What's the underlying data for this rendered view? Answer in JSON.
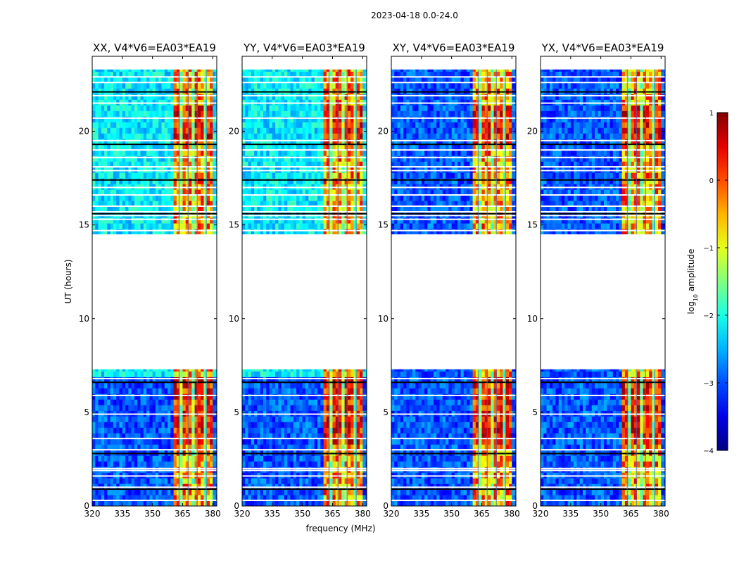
{
  "chart_data": {
    "type": "heatmap",
    "title": "2023-04-18 0.0-24.0",
    "xlabel": "frequency (MHz)",
    "ylabel": "UT (hours)",
    "xlim": [
      320,
      382
    ],
    "ylim": [
      0,
      24
    ],
    "x_ticks": [
      "320",
      "335",
      "350",
      "365",
      "380"
    ],
    "x_tick_values": [
      320,
      335,
      350,
      365,
      380
    ],
    "y_ticks": [
      "0",
      "5",
      "10",
      "15",
      "20"
    ],
    "y_tick_values": [
      0,
      5,
      10,
      15,
      20
    ],
    "data_gap_hours": [
      7.3,
      14.5
    ],
    "data_end_hour": 23.3,
    "strong_band_mhz": [
      360,
      380
    ],
    "panels": [
      {
        "title": "XX, V4*V6=EA03*EA19"
      },
      {
        "title": "YY, V4*V6=EA03*EA19"
      },
      {
        "title": "XY, V4*V6=EA03*EA19"
      },
      {
        "title": "YX, V4*V6=EA03*EA19"
      }
    ],
    "colorbar": {
      "label": "log10 amplitude",
      "label_main": "log",
      "label_sub": "10",
      "label_tail": " amplitude",
      "range": [
        -4,
        1
      ],
      "ticks": [
        "1",
        "0",
        "−1",
        "−2",
        "−3",
        "−4"
      ],
      "tick_values": [
        1,
        0,
        -1,
        -2,
        -3,
        -4
      ],
      "colormap": "jet"
    }
  }
}
